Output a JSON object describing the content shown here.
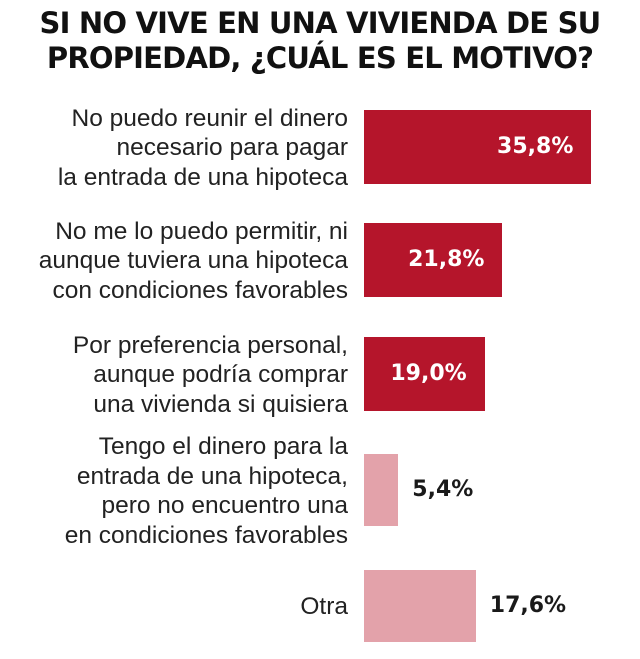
{
  "chart_data": {
    "type": "bar",
    "orientation": "horizontal",
    "title": [
      "SI NO VIVE EN UNA VIVIENDA DE SU",
      "PROPIEDAD, ¿CUÁL ES EL MOTIVO?"
    ],
    "categories": [
      [
        "No puedo reunir el dinero",
        "necesario para pagar",
        "la entrada de una hipoteca"
      ],
      [
        "No me lo puedo permitir, ni",
        "aunque tuviera una hipoteca",
        "con condiciones favorables"
      ],
      [
        "Por preferencia personal,",
        "aunque podría comprar",
        "una vivienda si quisiera"
      ],
      [
        "Tengo el dinero para la",
        "entrada de una hipoteca,",
        "pero no encuentro una",
        "en condiciones favorables"
      ],
      [
        "Otra"
      ]
    ],
    "values": [
      35.8,
      21.8,
      19.0,
      5.4,
      17.6
    ],
    "value_labels": [
      "35,8%",
      "21,8%",
      "19,0%",
      "5,4%",
      "17,6%"
    ],
    "colors": [
      "#b5152b",
      "#b5152b",
      "#b5152b",
      "#e3a2aa",
      "#e3a2aa"
    ],
    "xlim": [
      0,
      37
    ],
    "xlabel": "",
    "ylabel": "",
    "grid": false,
    "legend": "none"
  }
}
